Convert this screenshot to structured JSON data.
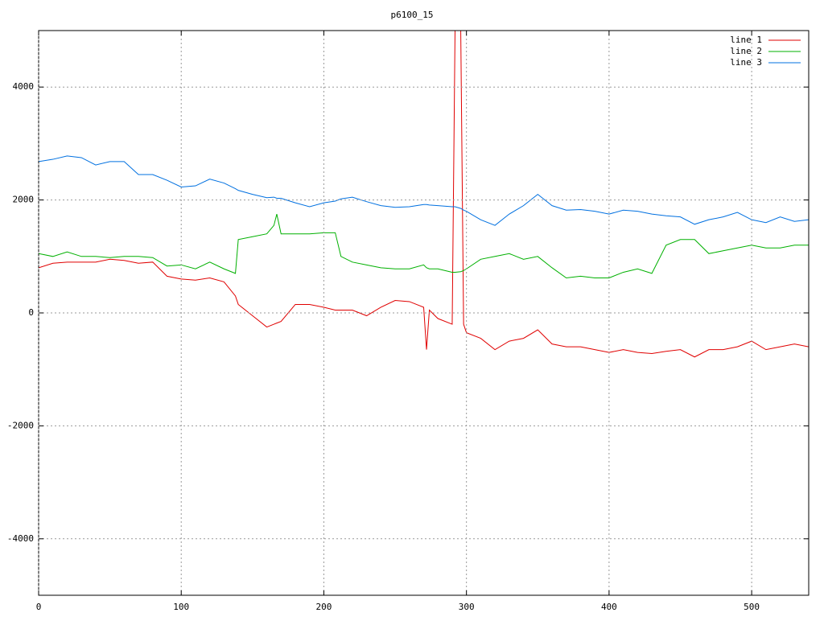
{
  "chart_data": {
    "type": "line",
    "title": "p6100_15",
    "x": [
      0,
      10,
      20,
      30,
      40,
      50,
      60,
      70,
      80,
      90,
      100,
      110,
      120,
      130,
      138,
      140,
      150,
      160,
      165,
      167,
      170,
      180,
      190,
      200,
      208,
      212,
      220,
      230,
      240,
      250,
      260,
      270,
      272,
      274,
      280,
      290,
      292,
      296,
      298,
      300,
      310,
      320,
      330,
      340,
      350,
      360,
      370,
      380,
      390,
      400,
      410,
      420,
      430,
      440,
      450,
      460,
      470,
      480,
      490,
      500,
      510,
      520,
      530,
      540
    ],
    "series": [
      {
        "name": "line 1",
        "color": "#e00000",
        "values": [
          800,
          880,
          900,
          900,
          900,
          950,
          930,
          880,
          900,
          650,
          600,
          580,
          620,
          550,
          300,
          150,
          -50,
          -250,
          -200,
          -180,
          -150,
          150,
          150,
          100,
          50,
          50,
          50,
          -50,
          100,
          220,
          200,
          100,
          -650,
          50,
          -100,
          -200,
          5000,
          5000,
          -200,
          -350,
          -450,
          -650,
          -500,
          -450,
          -300,
          -550,
          -600,
          -600,
          -650,
          -700,
          -650,
          -700,
          -720,
          -680,
          -650,
          -780,
          -650,
          -650,
          -600,
          -500,
          -650,
          -600,
          -550,
          -600
        ]
      },
      {
        "name": "line 2",
        "color": "#00b000",
        "values": [
          1050,
          1000,
          1080,
          1000,
          1000,
          980,
          1000,
          1000,
          980,
          830,
          850,
          780,
          900,
          780,
          700,
          1300,
          1350,
          1400,
          1550,
          1750,
          1400,
          1400,
          1400,
          1420,
          1420,
          1000,
          900,
          850,
          800,
          780,
          780,
          850,
          800,
          780,
          780,
          720,
          720,
          730,
          750,
          780,
          950,
          1000,
          1050,
          950,
          1000,
          800,
          620,
          650,
          620,
          620,
          720,
          780,
          700,
          1200,
          1300,
          1300,
          1050,
          1100,
          1150,
          1200,
          1150,
          1150,
          1200,
          1200
        ]
      },
      {
        "name": "line 3",
        "color": "#0070e0",
        "values": [
          2680,
          2720,
          2780,
          2750,
          2620,
          2680,
          2680,
          2450,
          2450,
          2350,
          2230,
          2250,
          2370,
          2300,
          2200,
          2170,
          2100,
          2040,
          2050,
          2030,
          2030,
          1950,
          1880,
          1950,
          1980,
          2020,
          2050,
          1970,
          1900,
          1870,
          1880,
          1920,
          1920,
          1910,
          1900,
          1880,
          1880,
          1850,
          1820,
          1800,
          1650,
          1550,
          1750,
          1900,
          2100,
          1900,
          1820,
          1830,
          1800,
          1750,
          1820,
          1800,
          1750,
          1720,
          1700,
          1570,
          1650,
          1700,
          1780,
          1650,
          1600,
          1700,
          1620,
          1650
        ]
      }
    ],
    "xlim": [
      0,
      540
    ],
    "ylim": [
      -5000,
      5000
    ],
    "xticks": [
      0,
      100,
      200,
      300,
      400,
      500
    ],
    "yticks": [
      -4000,
      -2000,
      0,
      2000,
      4000
    ],
    "grid": true,
    "legend": "top-right"
  }
}
